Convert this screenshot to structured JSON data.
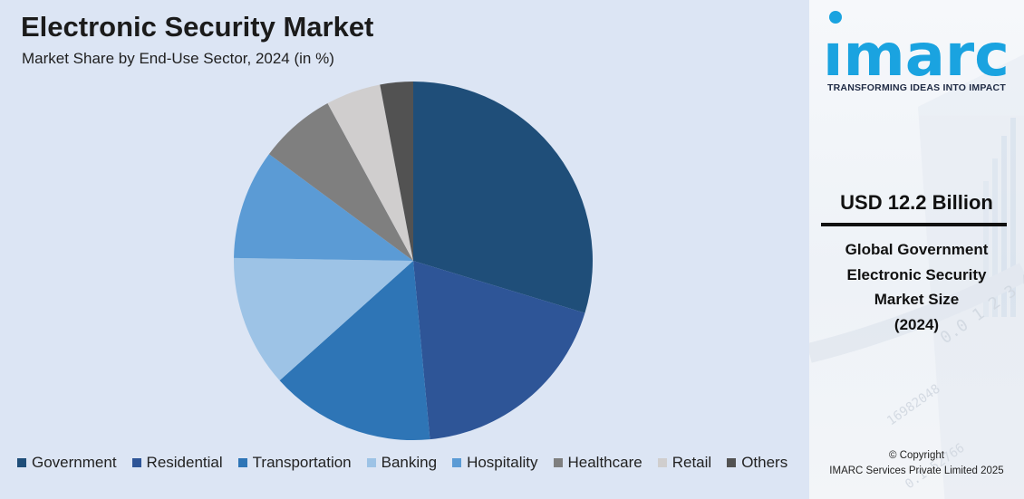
{
  "header": {
    "title": "Electronic Security Market",
    "subtitle": "Market Share by End-Use Sector, 2024 (in %)"
  },
  "chart_data": {
    "type": "pie",
    "title": "Electronic Security Market",
    "subtitle": "Market Share by End-Use Sector, 2024 (in %)",
    "categories": [
      "Government",
      "Residential",
      "Transportation",
      "Banking",
      "Hospitality",
      "Healthcare",
      "Retail",
      "Others"
    ],
    "values": [
      30,
      19,
      15,
      12,
      10,
      7,
      5,
      3
    ],
    "colors": [
      "#1f4e79",
      "#2e5597",
      "#2e75b6",
      "#9dc3e6",
      "#5b9bd5",
      "#7f7f7f",
      "#d0cece",
      "#525252"
    ],
    "legend": "bottom"
  },
  "sidebar": {
    "brand": "imarc",
    "tagline": "TRANSFORMING IDEAS INTO IMPACT",
    "market_value": "USD 12.2 Billion",
    "caption_lines": [
      "Global Government",
      "Electronic Security",
      "Market Size",
      "(2024)"
    ],
    "copyright_lines": [
      "© Copyright",
      "IMARC Services Private Limited 2025"
    ],
    "brand_color": "#1aa3e0"
  }
}
